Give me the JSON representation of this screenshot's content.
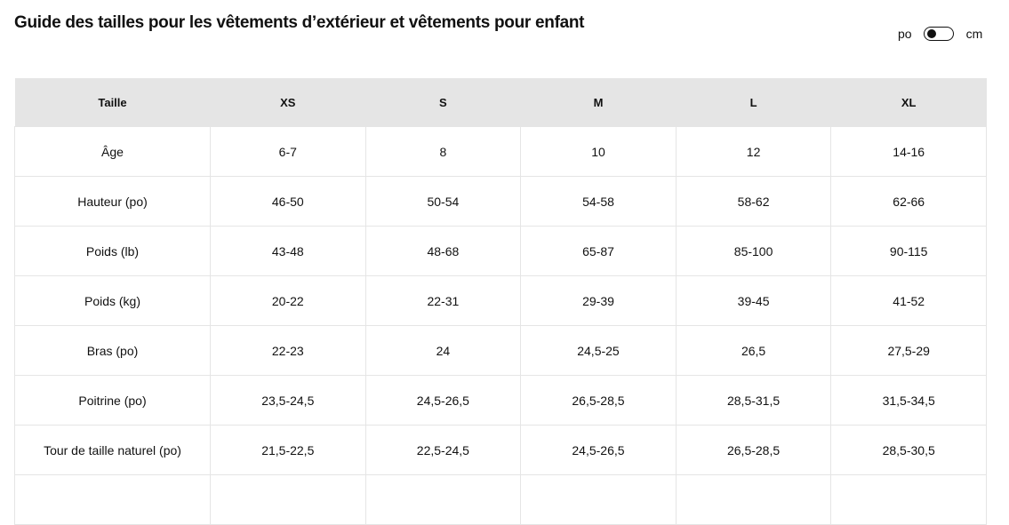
{
  "title": "Guide des tailles pour les vêtements d’extérieur et vêtements pour enfant",
  "unit_toggle": {
    "left": "po",
    "right": "cm",
    "selected": "po"
  },
  "table": {
    "headers": [
      "Taille",
      "XS",
      "S",
      "M",
      "L",
      "XL"
    ],
    "rows": [
      [
        "Âge",
        "6-7",
        "8",
        "10",
        "12",
        "14-16"
      ],
      [
        "Hauteur (po)",
        "46-50",
        "50-54",
        "54-58",
        "58-62",
        "62-66"
      ],
      [
        "Poids (lb)",
        "43-48",
        "48-68",
        "65-87",
        "85-100",
        "90-115"
      ],
      [
        "Poids (kg)",
        "20-22",
        "22-31",
        "29-39",
        "39-45",
        "41-52"
      ],
      [
        "Bras (po)",
        "22-23",
        "24",
        "24,5-25",
        "26,5",
        "27,5-29"
      ],
      [
        "Poitrine (po)",
        "23,5-24,5",
        "24,5-26,5",
        "26,5-28,5",
        "28,5-31,5",
        "31,5-34,5"
      ],
      [
        "Tour de taille naturel (po)",
        "21,5-22,5",
        "22,5-24,5",
        "24,5-26,5",
        "26,5-28,5",
        "28,5-30,5"
      ]
    ]
  }
}
